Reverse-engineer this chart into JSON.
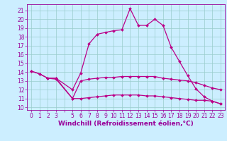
{
  "xlabel": "Windchill (Refroidissement éolien,°C)",
  "ylabel": "",
  "bg_color": "#cceeff",
  "grid_color": "#99cccc",
  "line_color": "#bb0088",
  "x_ticks": [
    0,
    1,
    2,
    3,
    4,
    5,
    6,
    7,
    8,
    9,
    10,
    11,
    12,
    13,
    14,
    15,
    16,
    17,
    18,
    19,
    20,
    21,
    22,
    23
  ],
  "x_labels": [
    "0",
    "1",
    "2",
    "3",
    "",
    "5",
    "6",
    "7",
    "8",
    "9",
    "10",
    "11",
    "12",
    "13",
    "14",
    "15",
    "16",
    "17",
    "18",
    "19",
    "20",
    "21",
    "22",
    "23"
  ],
  "y_ticks": [
    10,
    11,
    12,
    13,
    14,
    15,
    16,
    17,
    18,
    19,
    20,
    21
  ],
  "ylim": [
    9.7,
    21.7
  ],
  "xlim": [
    -0.5,
    23.5
  ],
  "series": [
    {
      "x": [
        0,
        1,
        2,
        3,
        5,
        6,
        7,
        8,
        9,
        10,
        11,
        12,
        13,
        14,
        15,
        16,
        17,
        18,
        19,
        20,
        21,
        22,
        23
      ],
      "y": [
        14.1,
        13.8,
        13.3,
        13.3,
        12.0,
        13.9,
        17.2,
        18.3,
        18.5,
        18.7,
        18.8,
        21.2,
        19.3,
        19.3,
        20.0,
        19.3,
        16.8,
        15.2,
        13.6,
        12.1,
        11.2,
        10.7,
        10.4
      ]
    },
    {
      "x": [
        0,
        1,
        2,
        3,
        5,
        6,
        7,
        8,
        9,
        10,
        11,
        12,
        13,
        14,
        15,
        16,
        17,
        18,
        19,
        20,
        21,
        22,
        23
      ],
      "y": [
        14.1,
        13.8,
        13.3,
        13.3,
        11.0,
        13.0,
        13.2,
        13.3,
        13.4,
        13.4,
        13.5,
        13.5,
        13.5,
        13.5,
        13.5,
        13.3,
        13.2,
        13.1,
        13.0,
        12.8,
        12.5,
        12.2,
        12.0
      ]
    },
    {
      "x": [
        2,
        3,
        5,
        6,
        7,
        8,
        9,
        10,
        11,
        12,
        13,
        14,
        15,
        16,
        17,
        18,
        19,
        20,
        21,
        22,
        23
      ],
      "y": [
        13.3,
        13.2,
        11.0,
        11.0,
        11.1,
        11.2,
        11.3,
        11.4,
        11.4,
        11.4,
        11.4,
        11.3,
        11.3,
        11.2,
        11.1,
        11.0,
        10.9,
        10.8,
        10.8,
        10.7,
        10.4
      ]
    }
  ],
  "marker": "D",
  "markersize": 2.0,
  "linewidth": 0.9,
  "font_color": "#990099",
  "tick_fontsize": 5.5,
  "label_fontsize": 6.5
}
